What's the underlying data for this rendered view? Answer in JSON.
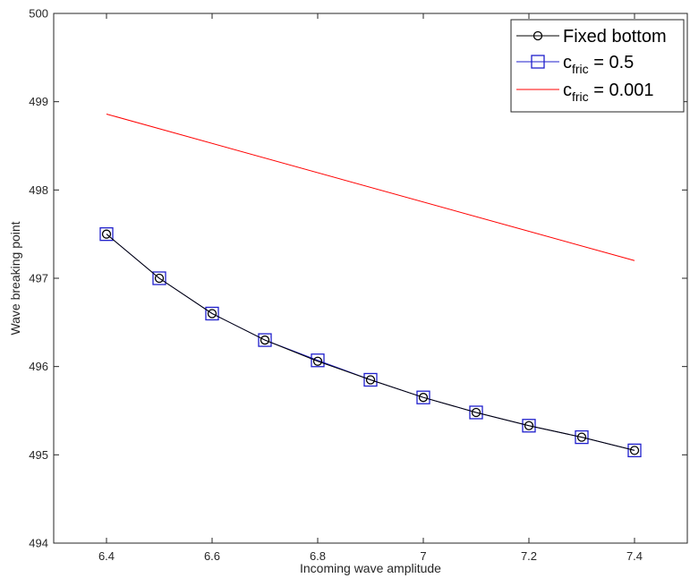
{
  "chart_data": {
    "type": "line",
    "xlabel": "Incoming wave amplitude",
    "ylabel": "Wave breaking point",
    "xlim": [
      6.3,
      7.5
    ],
    "ylim": [
      494,
      500
    ],
    "xticks": [
      "6.4",
      "6.6",
      "6.8",
      "7",
      "7.2",
      "7.4"
    ],
    "yticks": [
      "494",
      "495",
      "496",
      "497",
      "498",
      "499",
      "500"
    ],
    "xtick_values": [
      6.4,
      6.6,
      6.8,
      7.0,
      7.2,
      7.4
    ],
    "ytick_values": [
      494,
      495,
      496,
      497,
      498,
      499,
      500
    ],
    "grid": false,
    "legend_position": "top-right",
    "series": [
      {
        "name": "Fixed bottom",
        "color": "#000000",
        "marker": "circle",
        "x": [
          6.4,
          6.5,
          6.6,
          6.7,
          6.8,
          6.9,
          7.0,
          7.1,
          7.2,
          7.3,
          7.4
        ],
        "y": [
          497.5,
          497.0,
          496.6,
          496.3,
          496.06,
          495.85,
          495.65,
          495.48,
          495.33,
          495.2,
          495.05
        ]
      },
      {
        "name": "c_fric = 0.5",
        "color": "#1f1fcc",
        "marker": "square",
        "x": [
          6.4,
          6.5,
          6.6,
          6.7,
          6.8,
          6.9,
          7.0,
          7.1,
          7.2,
          7.3,
          7.4
        ],
        "y": [
          497.5,
          497.0,
          496.6,
          496.3,
          496.07,
          495.85,
          495.65,
          495.48,
          495.33,
          495.2,
          495.05
        ]
      },
      {
        "name": "c_fric = 0.001",
        "color": "#ff0000",
        "marker": "none",
        "x": [
          6.4,
          7.4
        ],
        "y": [
          498.86,
          497.2
        ]
      }
    ],
    "legend": {
      "entries": [
        {
          "main": "Fixed bottom",
          "sub": "",
          "rest": ""
        },
        {
          "main": "c",
          "sub": "fric",
          "rest": " = 0.5"
        },
        {
          "main": "c",
          "sub": "fric",
          "rest": " = 0.001"
        }
      ]
    }
  }
}
